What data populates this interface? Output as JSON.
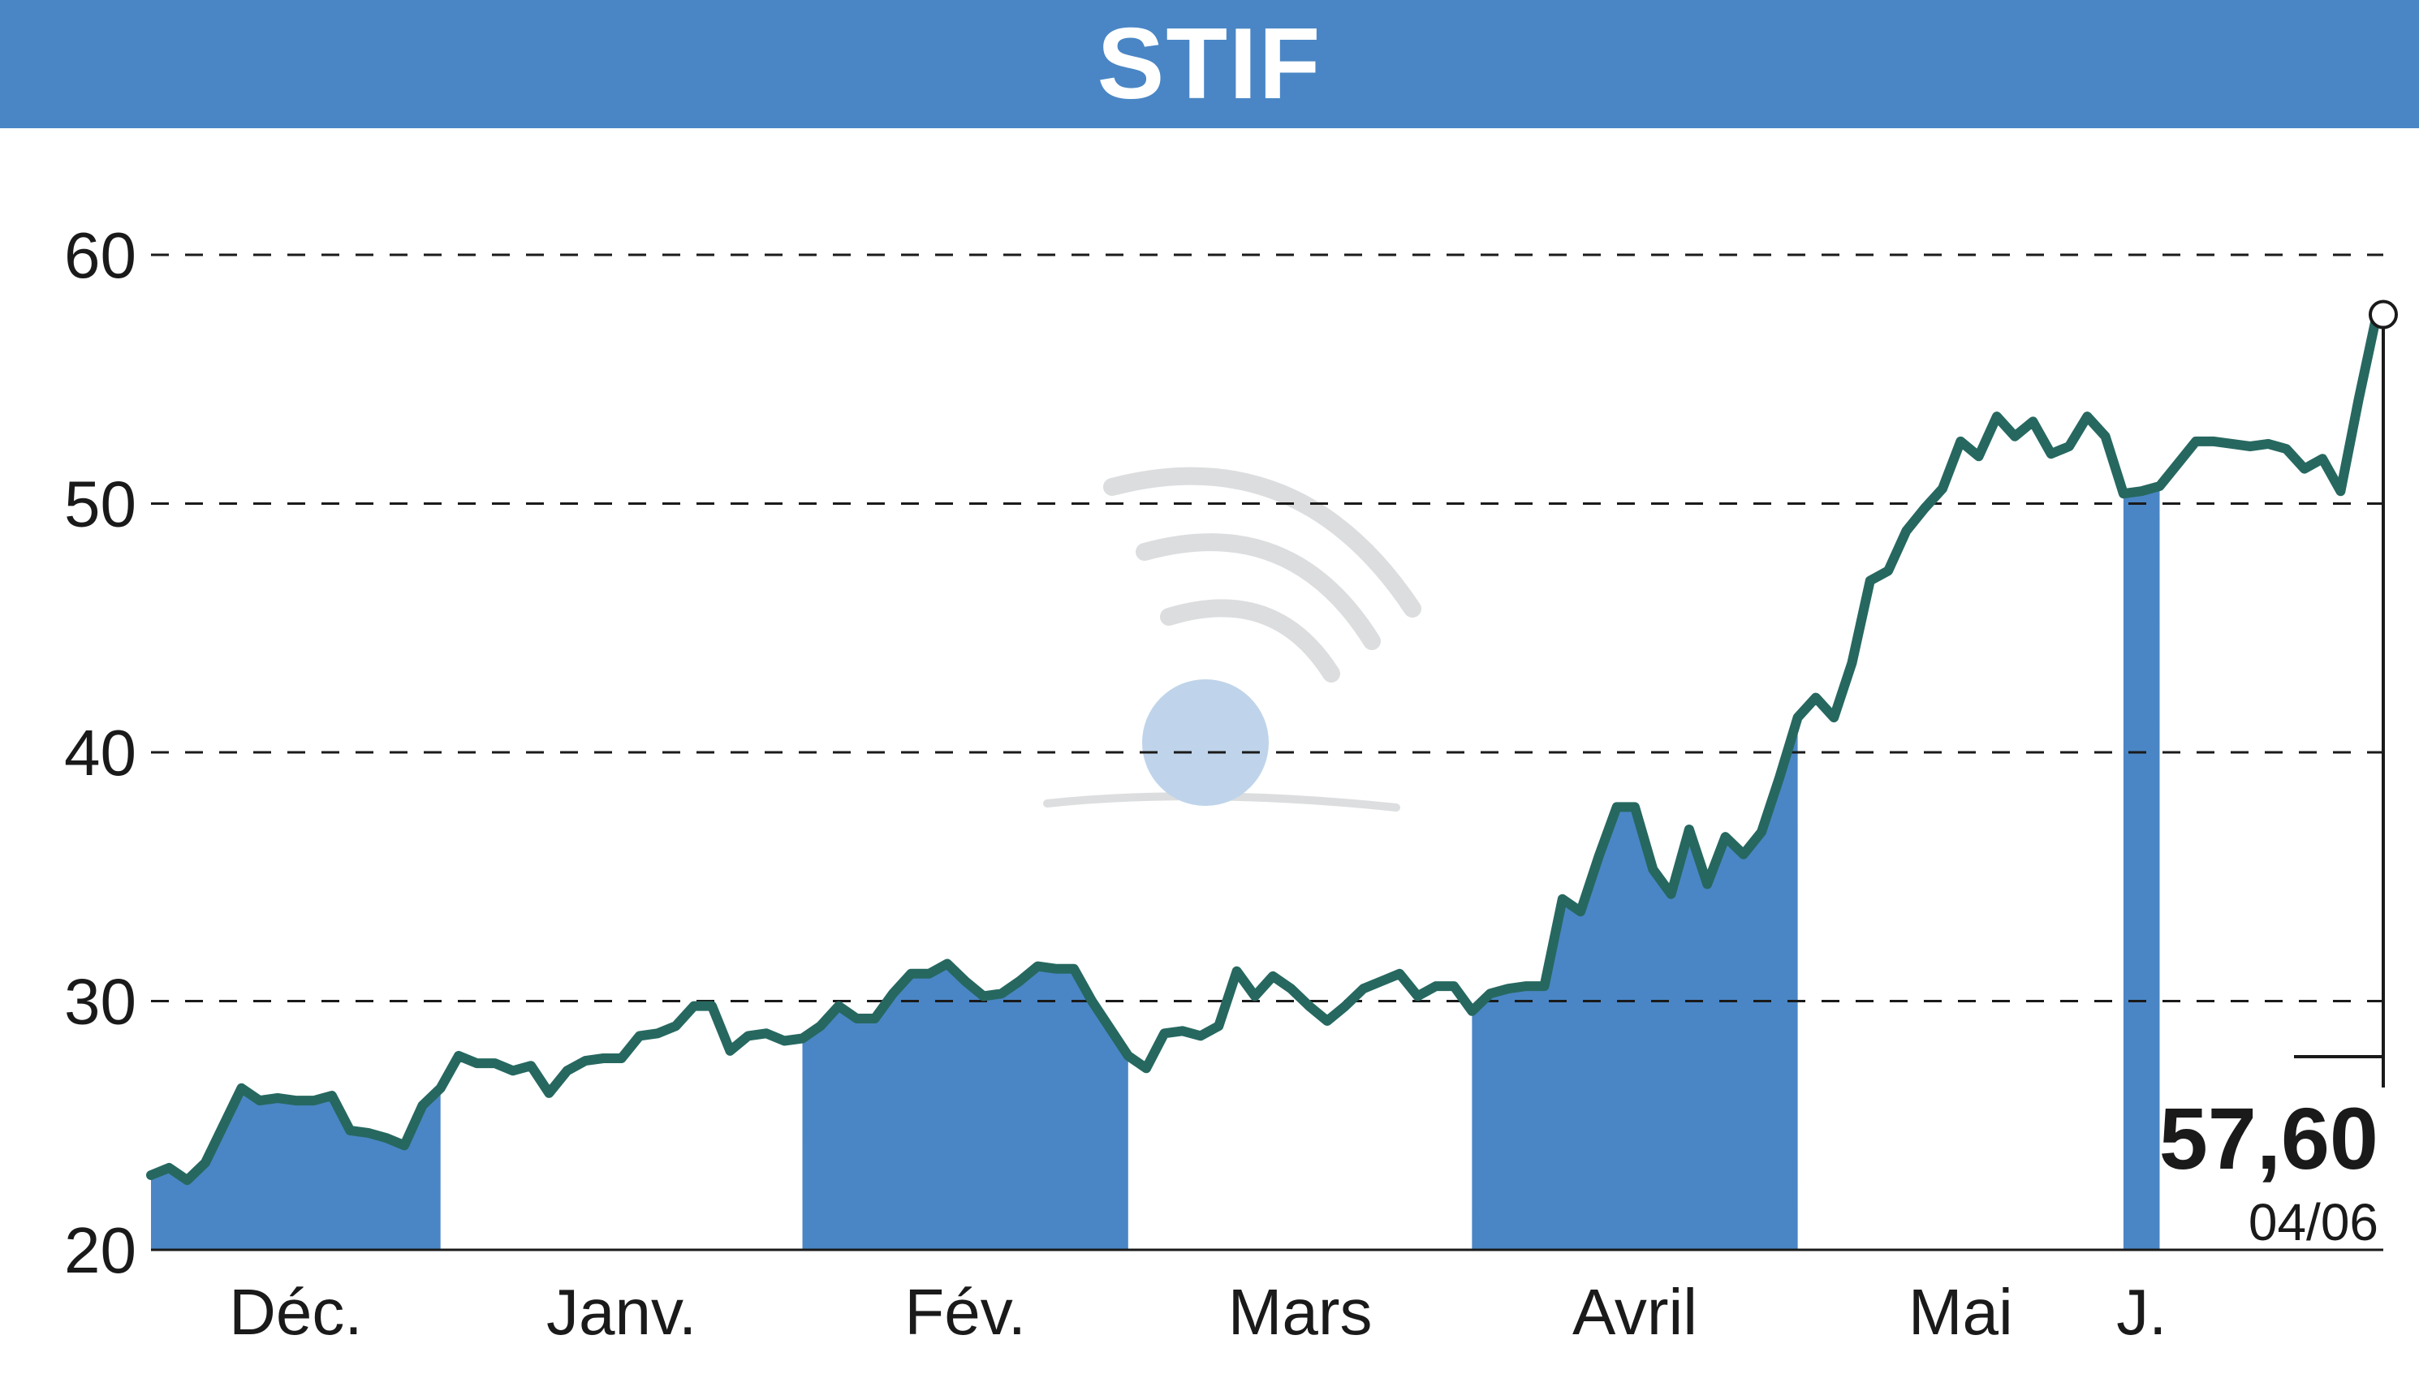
{
  "title": "STIF",
  "chart_data": {
    "type": "line",
    "title": "STIF",
    "xlabel": "",
    "ylabel": "",
    "ylim": [
      20,
      60
    ],
    "yticks": [
      20,
      30,
      40,
      50,
      60
    ],
    "grid": "horizontal dashed",
    "months": [
      {
        "label": "Déc.",
        "start": 0,
        "end": 16,
        "shaded": true
      },
      {
        "label": "Janv.",
        "start": 16,
        "end": 36,
        "shaded": false
      },
      {
        "label": "Fév.",
        "start": 36,
        "end": 54,
        "shaded": true
      },
      {
        "label": "Mars",
        "start": 54,
        "end": 73,
        "shaded": false
      },
      {
        "label": "Avril",
        "start": 73,
        "end": 91,
        "shaded": true
      },
      {
        "label": "Mai",
        "start": 91,
        "end": 109,
        "shaded": false
      },
      {
        "label": "J.",
        "start": 109,
        "end": 111,
        "shaded": true
      }
    ],
    "series": [
      {
        "values": [
          23.0,
          23.3,
          22.8,
          23.5,
          25.0,
          26.5,
          26.0,
          26.1,
          26.0,
          26.0,
          26.2,
          24.8,
          24.7,
          24.5,
          24.2,
          25.8,
          26.5,
          27.8,
          27.5,
          27.5,
          27.2,
          27.4,
          26.3,
          27.2,
          27.6,
          27.7,
          27.7,
          28.6,
          28.7,
          29.0,
          29.8,
          29.8,
          28.0,
          28.6,
          28.7,
          28.4,
          28.5,
          29.0,
          29.8,
          29.3,
          29.3,
          30.3,
          31.1,
          31.1,
          31.5,
          30.8,
          30.2,
          30.3,
          30.8,
          31.4,
          31.3,
          31.3,
          30.0,
          28.9,
          27.8,
          27.3,
          28.7,
          28.8,
          28.6,
          29.0,
          31.2,
          30.2,
          31.0,
          30.5,
          29.8,
          29.2,
          29.8,
          30.5,
          30.8,
          31.1,
          30.2,
          30.6,
          30.6,
          29.6,
          30.3,
          30.5,
          30.6,
          30.6,
          34.1,
          33.6,
          35.8,
          37.8,
          37.8,
          35.3,
          34.3,
          36.9,
          34.7,
          36.6,
          35.9,
          36.8,
          39.0,
          41.4,
          42.2,
          41.4,
          43.6,
          46.9,
          47.3,
          48.9,
          49.8,
          50.6,
          52.5,
          51.9,
          53.5,
          52.7,
          53.3,
          52.0,
          52.3,
          53.5,
          52.7,
          50.4,
          50.5,
          50.7,
          51.6,
          52.5,
          52.5,
          52.4,
          52.3,
          52.4,
          52.2,
          51.4,
          51.8,
          50.5,
          54.2,
          57.6
        ],
        "color": "#266860"
      }
    ],
    "last_value_label": "57,60",
    "last_date_label": "04/06"
  }
}
